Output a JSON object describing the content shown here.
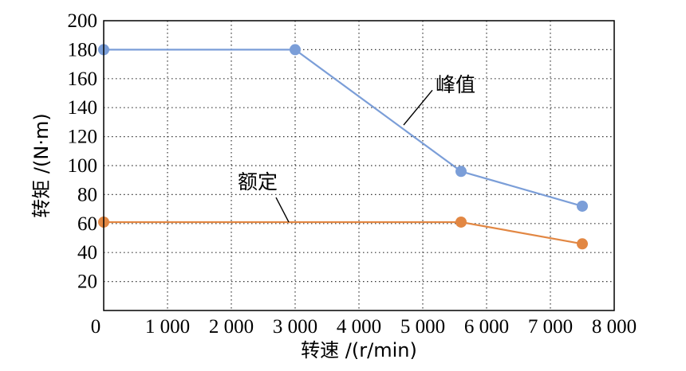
{
  "chart_data": {
    "type": "line",
    "xlabel": "转速 /(r/min)",
    "ylabel": "转矩 /(N·m)",
    "xlim": [
      0,
      8000
    ],
    "ylim": [
      0,
      200
    ],
    "x_ticks": [
      0,
      1000,
      2000,
      3000,
      4000,
      5000,
      6000,
      7000,
      8000
    ],
    "x_tick_labels": [
      "0",
      "1 000",
      "2 000",
      "3 000",
      "4 000",
      "5 000",
      "6 000",
      "7 000",
      "8 000"
    ],
    "y_ticks": [
      20,
      40,
      60,
      80,
      100,
      120,
      140,
      160,
      180,
      200
    ],
    "y_tick_labels": [
      "20",
      "40",
      "60",
      "80",
      "100",
      "120",
      "140",
      "160",
      "180",
      "200"
    ],
    "grid": true,
    "series": [
      {
        "name": "峰值",
        "color": "#7b9ed8",
        "points": [
          {
            "x": 0,
            "y": 180
          },
          {
            "x": 3000,
            "y": 180
          },
          {
            "x": 5600,
            "y": 96
          },
          {
            "x": 7500,
            "y": 72
          }
        ],
        "label_at": {
          "x": 5500,
          "y": 150
        }
      },
      {
        "name": "额定",
        "color": "#e28743",
        "points": [
          {
            "x": 0,
            "y": 61
          },
          {
            "x": 5600,
            "y": 61
          },
          {
            "x": 7500,
            "y": 46
          }
        ],
        "label_at": {
          "x": 2750,
          "y": 84
        }
      }
    ]
  }
}
